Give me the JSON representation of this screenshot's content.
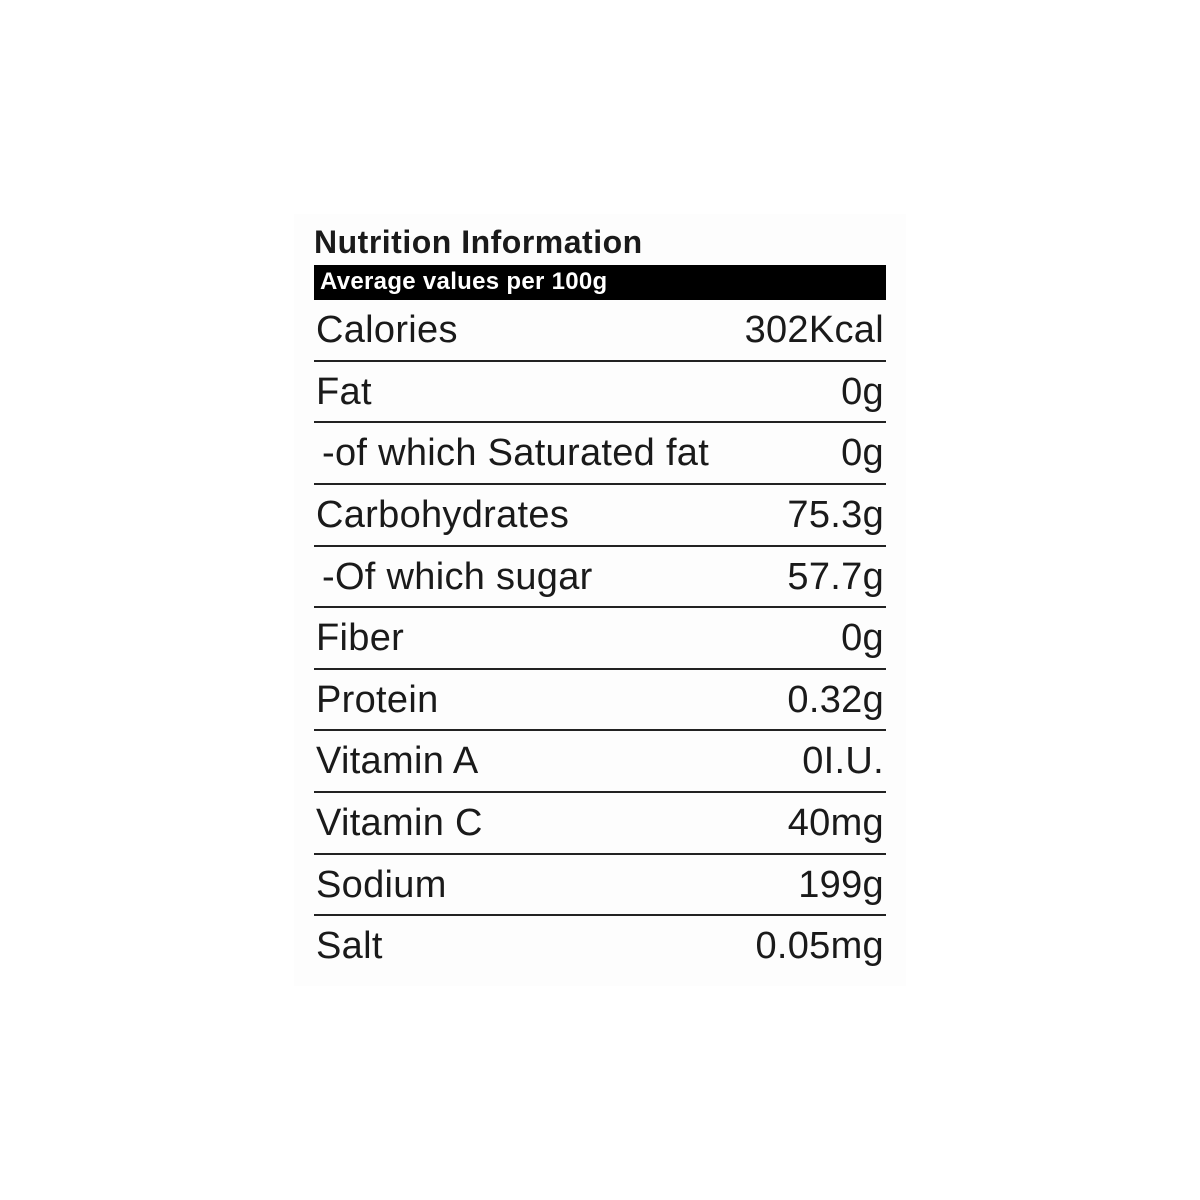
{
  "nutrition": {
    "title": "Nutrition Information",
    "subtitle": "Average values per 100g",
    "title_fontsize": 32,
    "subtitle_fontsize": 24,
    "row_fontsize": 38,
    "text_color": "#1a1a1a",
    "background_color": "#fdfdfd",
    "bar_bg_color": "#000000",
    "bar_text_color": "#ffffff",
    "divider_color": "#222222",
    "rows": [
      {
        "label": "Calories",
        "value": "302Kcal"
      },
      {
        "label": "Fat",
        "value": "0g"
      },
      {
        "label": " -of which Saturated fat",
        "value": "0g"
      },
      {
        "label": "Carbohydrates",
        "value": "75.3g"
      },
      {
        "label": " -Of which sugar",
        "value": "57.7g"
      },
      {
        "label": "Fiber",
        "value": "0g"
      },
      {
        "label": "Protein",
        "value": "0.32g"
      },
      {
        "label": "Vitamin A",
        "value": "0I.U."
      },
      {
        "label": "Vitamin C",
        "value": "40mg"
      },
      {
        "label": "Sodium",
        "value": "199g"
      },
      {
        "label": "Salt",
        "value": "0.05mg"
      }
    ]
  }
}
